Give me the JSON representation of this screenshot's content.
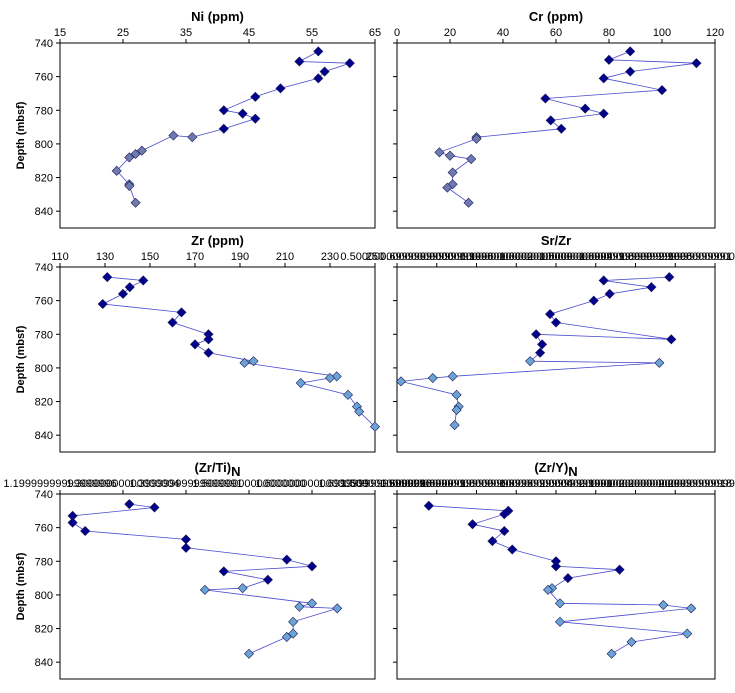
{
  "figure": {
    "y_label": "Depth (mbsf)",
    "y_ticks": [
      740,
      760,
      780,
      800,
      820,
      840
    ],
    "ylim": [
      740,
      850
    ],
    "reversed_y": true
  },
  "chart_data": [
    {
      "type": "scatter",
      "title": "Ni (ppm)",
      "xlabel": "Ni (ppm)",
      "ylabel": "Depth (mbsf)",
      "xlim": [
        15,
        65
      ],
      "x_ticks": [
        15,
        25,
        35,
        45,
        55,
        65
      ],
      "series": [
        {
          "color": "#00008b",
          "x": [
            56,
            53,
            61,
            57,
            56,
            50,
            46,
            41,
            44,
            46,
            41
          ],
          "y": [
            745,
            751,
            752,
            757,
            761,
            767,
            772,
            780,
            782,
            785,
            791
          ]
        },
        {
          "color": "#6f7bb0",
          "x": [
            36,
            33,
            28,
            27,
            26,
            24,
            26,
            26,
            27
          ],
          "y": [
            796,
            795,
            804,
            806,
            808,
            816,
            824,
            825,
            835
          ]
        }
      ]
    },
    {
      "type": "scatter",
      "title": "Cr (ppm)",
      "xlabel": "Cr (ppm)",
      "ylabel": "Depth (mbsf)",
      "xlim": [
        0,
        120
      ],
      "x_ticks": [
        0,
        20,
        40,
        60,
        80,
        100,
        120
      ],
      "series": [
        {
          "color": "#00008b",
          "x": [
            88,
            80,
            113,
            88,
            78,
            100,
            56,
            71,
            78,
            58,
            62
          ],
          "y": [
            745,
            750,
            752,
            757,
            761,
            768,
            773,
            779,
            782,
            786,
            791
          ]
        },
        {
          "color": "#6f7bb0",
          "x": [
            30,
            30,
            16,
            20,
            28,
            21,
            21,
            19,
            27
          ],
          "y": [
            796,
            797,
            805,
            807,
            809,
            817,
            824,
            826,
            835
          ]
        }
      ]
    },
    {
      "type": "scatter",
      "title": "Zr (ppm)",
      "xlabel": "Zr (ppm)",
      "ylabel": "Depth (mbsf)",
      "xlim": [
        110,
        250
      ],
      "x_ticks": [
        110,
        130,
        150,
        170,
        190,
        210,
        230,
        250
      ],
      "series": [
        {
          "color": "#00008b",
          "x": [
            131,
            147,
            141,
            138,
            129,
            164,
            160,
            176,
            176,
            170,
            176
          ],
          "y": [
            746,
            748,
            752,
            756,
            762,
            767,
            773,
            780,
            783,
            786,
            791
          ]
        },
        {
          "color": "#6ba3d6",
          "x": [
            196,
            192,
            233,
            230,
            217,
            238,
            242,
            243,
            250
          ],
          "y": [
            796,
            797,
            805,
            806,
            809,
            816,
            823,
            826,
            835
          ]
        }
      ]
    },
    {
      "type": "scatter",
      "title": "Sr/Zr",
      "xlabel": "Sr/Zr",
      "ylabel": "Depth (mbsf)",
      "xlim": [
        0.5,
        2.1
      ],
      "x_ticks": [
        0.5,
        0.7,
        0.9,
        1.1,
        1.3,
        1.5,
        1.7,
        1.9,
        2.1
      ],
      "series": [
        {
          "color": "#00008b",
          "x": [
            1.87,
            1.54,
            1.78,
            1.57,
            1.49,
            1.27,
            1.3,
            1.88,
            1.2,
            1.23,
            1.22
          ],
          "y": [
            746,
            748,
            752,
            756,
            760,
            768,
            773,
            783,
            780,
            786,
            791
          ]
        },
        {
          "color": "#6ba3d6",
          "x": [
            1.17,
            1.82,
            0.78,
            0.68,
            0.52,
            0.8,
            0.81,
            0.8,
            0.79
          ],
          "y": [
            796,
            797,
            805,
            806,
            808,
            816,
            823,
            825,
            834
          ]
        }
      ]
    },
    {
      "type": "scatter",
      "title": "(Zr/Ti)N",
      "xlabel": "(Zr/Ti)N",
      "ylabel": "Depth (mbsf)",
      "xlim": [
        1.2,
        1.7
      ],
      "x_ticks": [
        1.2,
        1.3,
        1.4,
        1.5,
        1.6,
        1.7
      ],
      "series": [
        {
          "color": "#00008b",
          "x": [
            1.31,
            1.35,
            1.22,
            1.22,
            1.24,
            1.4,
            1.4,
            1.56,
            1.6,
            1.46,
            1.53
          ],
          "y": [
            746,
            748,
            753,
            757,
            762,
            767,
            772,
            779,
            783,
            786,
            791
          ]
        },
        {
          "color": "#6ba3d6",
          "x": [
            1.49,
            1.43,
            1.6,
            1.58,
            1.64,
            1.57,
            1.57,
            1.56,
            1.5
          ],
          "y": [
            796,
            797,
            805,
            807,
            808,
            816,
            823,
            825,
            835
          ]
        }
      ]
    },
    {
      "type": "scatter",
      "title": "(Zr/Y)N",
      "xlabel": "(Zr/Y)N",
      "ylabel": "Depth (mbsf)",
      "xlim": [
        1.5,
        2.3
      ],
      "x_ticks": [
        1.5,
        1.6,
        1.7,
        1.8,
        1.9,
        2.0,
        2.1,
        2.2,
        2.3
      ],
      "series": [
        {
          "color": "#00008b",
          "x": [
            1.58,
            1.78,
            1.77,
            1.69,
            1.77,
            1.74,
            1.79,
            1.9,
            1.9,
            2.06,
            1.93
          ],
          "y": [
            747,
            750,
            752,
            758,
            762,
            768,
            773,
            780,
            783,
            785,
            790
          ]
        },
        {
          "color": "#6ba3d6",
          "x": [
            1.89,
            1.88,
            1.91,
            2.17,
            2.24,
            1.91,
            2.23,
            2.09,
            2.04
          ],
          "y": [
            796,
            797,
            805,
            806,
            808,
            816,
            823,
            828,
            835
          ]
        }
      ]
    }
  ]
}
